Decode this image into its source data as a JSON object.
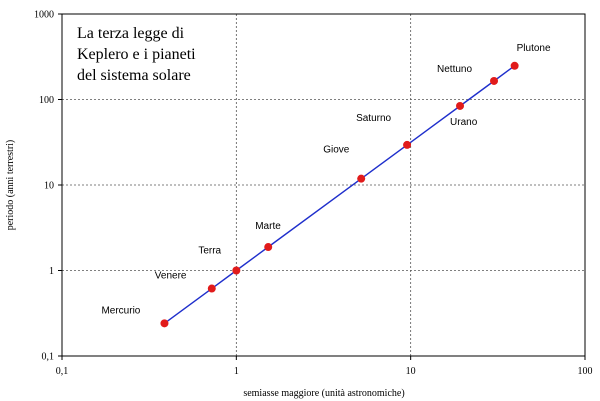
{
  "chart_data": {
    "type": "scatter",
    "title_lines": [
      "La terza legge di",
      "Keplero e i pianeti",
      "del sistema solare"
    ],
    "xlabel": "semiasse maggiore (unità astronomiche)",
    "ylabel": "periodo (anni terrestri)",
    "x_scale": "log",
    "y_scale": "log",
    "xlim": [
      0.1,
      100
    ],
    "ylim": [
      0.1,
      1000
    ],
    "x_ticks": [
      "0,1",
      "1",
      "10",
      "100"
    ],
    "y_ticks": [
      "0,1",
      "1",
      "10",
      "100",
      "1000"
    ],
    "grid": true,
    "line": true,
    "colors": {
      "line": "#1f2fcc",
      "point": "#e11b1b",
      "grid": "#555555"
    },
    "points": [
      {
        "name": "Mercurio",
        "x": 0.387,
        "y": 0.241
      },
      {
        "name": "Venere",
        "x": 0.723,
        "y": 0.615
      },
      {
        "name": "Terra",
        "x": 1.0,
        "y": 1.0
      },
      {
        "name": "Marte",
        "x": 1.524,
        "y": 1.881
      },
      {
        "name": "Giove",
        "x": 5.203,
        "y": 11.86
      },
      {
        "name": "Saturno",
        "x": 9.537,
        "y": 29.45
      },
      {
        "name": "Urano",
        "x": 19.19,
        "y": 84.02
      },
      {
        "name": "Nettuno",
        "x": 30.07,
        "y": 164.8
      },
      {
        "name": "Plutone",
        "x": 39.48,
        "y": 248.0
      }
    ]
  }
}
